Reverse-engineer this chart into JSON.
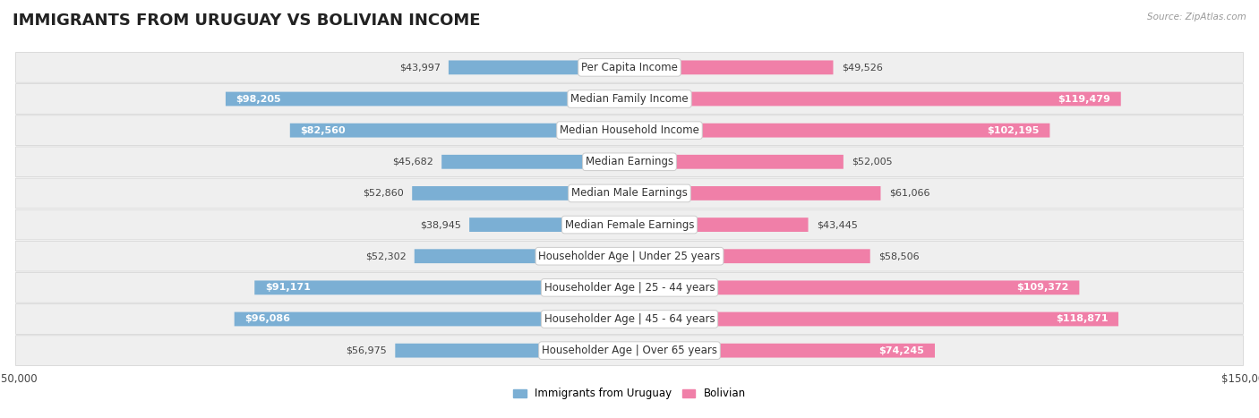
{
  "title": "IMMIGRANTS FROM URUGUAY VS BOLIVIAN INCOME",
  "source": "Source: ZipAtlas.com",
  "categories": [
    "Per Capita Income",
    "Median Family Income",
    "Median Household Income",
    "Median Earnings",
    "Median Male Earnings",
    "Median Female Earnings",
    "Householder Age | Under 25 years",
    "Householder Age | 25 - 44 years",
    "Householder Age | 45 - 64 years",
    "Householder Age | Over 65 years"
  ],
  "uruguay_values": [
    43997,
    98205,
    82560,
    45682,
    52860,
    38945,
    52302,
    91171,
    96086,
    56975
  ],
  "bolivian_values": [
    49526,
    119479,
    102195,
    52005,
    61066,
    43445,
    58506,
    109372,
    118871,
    74245
  ],
  "uruguay_color": "#7bafd4",
  "bolivian_color": "#f07fa8",
  "uruguay_label": "Immigrants from Uruguay",
  "bolivian_label": "Bolivian",
  "xlim": 150000,
  "bar_height": 0.45,
  "bg_color": "#f7f7f7",
  "row_bg": "#eeeeee",
  "row_colors": [
    "#f0f0f0",
    "#e8e8e8"
  ],
  "title_fontsize": 13,
  "label_fontsize": 8.5,
  "value_fontsize": 8,
  "axis_label_fontsize": 8.5,
  "inside_threshold": 65000
}
